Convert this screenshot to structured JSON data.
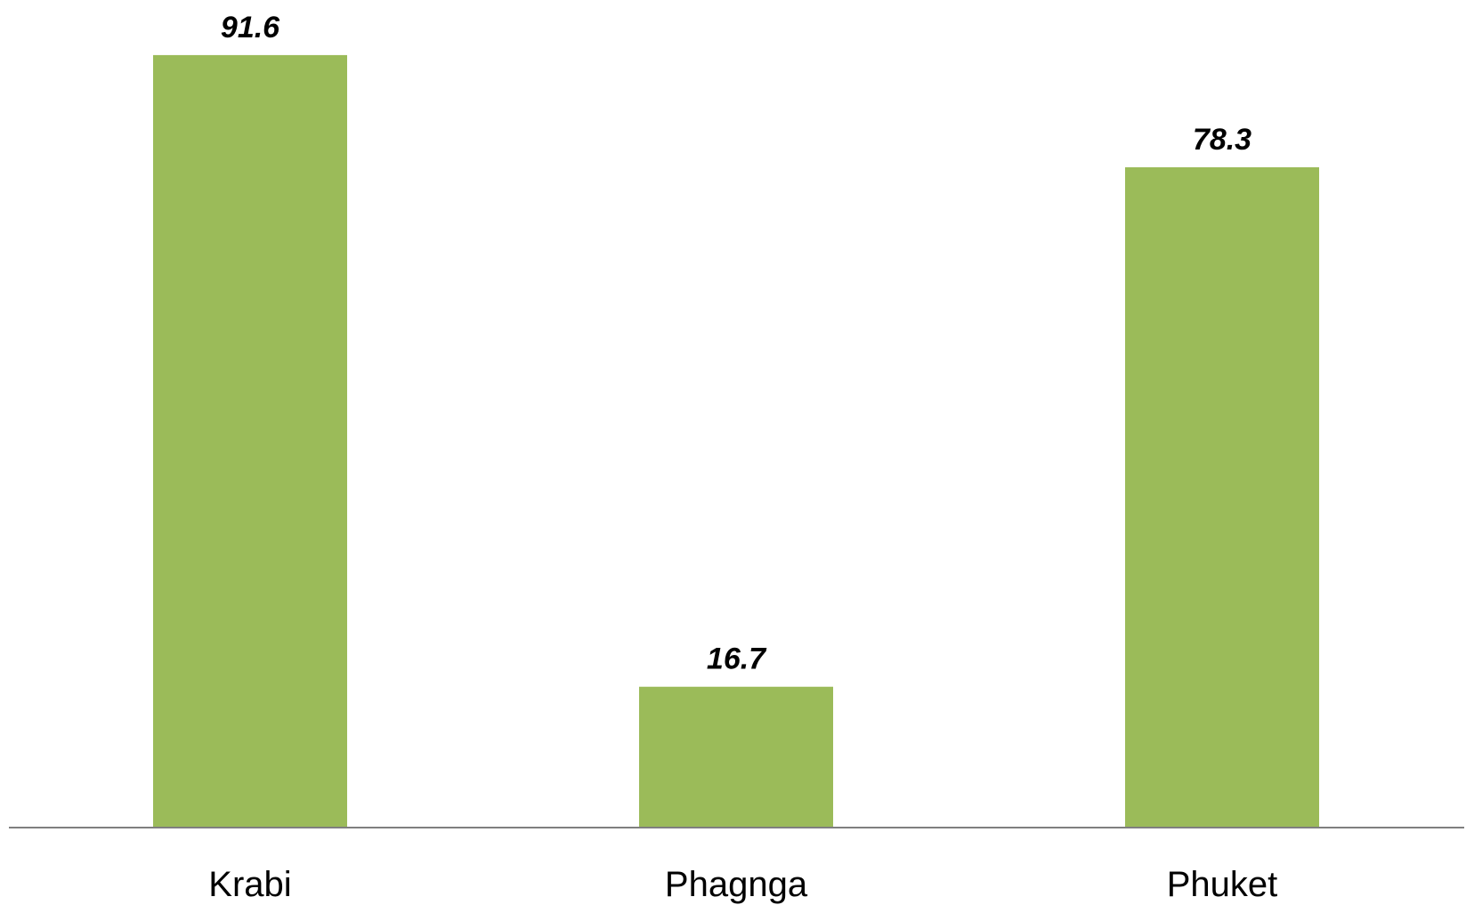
{
  "chart_data": {
    "type": "bar",
    "title": "",
    "xlabel": "",
    "ylabel": "",
    "categories": [
      "Krabi",
      "Phagnga",
      "Phuket"
    ],
    "values": [
      91.6,
      16.7,
      78.3
    ],
    "data_labels": [
      "91.6",
      "16.7",
      "78.3"
    ],
    "ylim": [
      0,
      100
    ],
    "grid": false,
    "legend": "none",
    "colors": {
      "bar": "#9BBB59",
      "axis": "#7F7F7F"
    }
  }
}
